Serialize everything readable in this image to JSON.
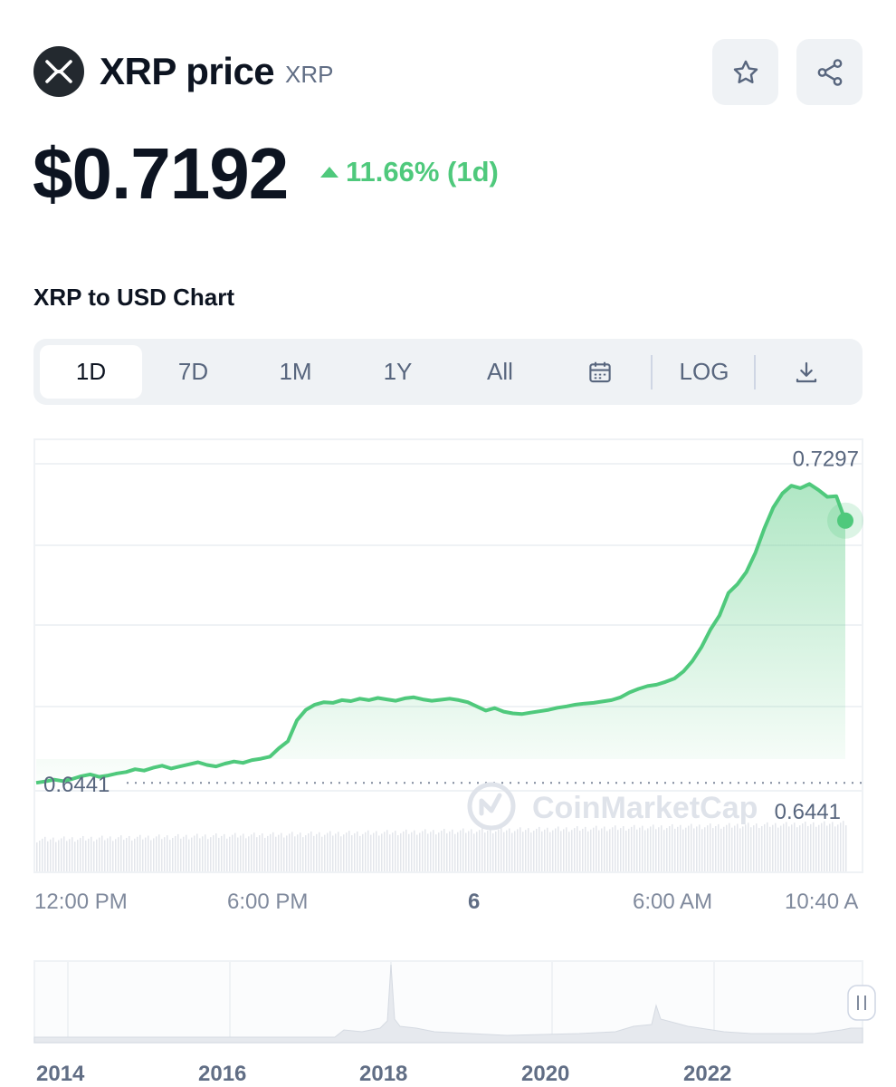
{
  "header": {
    "name": "XRP price",
    "symbol": "XRP",
    "price": "$0.7192",
    "change": "11.66% (1d)"
  },
  "chart_section": {
    "title": "XRP to USD Chart",
    "tabs": [
      "1D",
      "7D",
      "1M",
      "1Y",
      "All"
    ],
    "active_tab": "1D",
    "log_label": "LOG"
  },
  "colors": {
    "up": "#4fc97c",
    "logo_bg": "#23292f",
    "watermark": "#dfe3ea"
  },
  "chart_data": {
    "type": "line",
    "series": [
      {
        "values": [
          0.6441,
          0.6445,
          0.645,
          0.6446,
          0.6452,
          0.646,
          0.6465,
          0.6458,
          0.6462,
          0.6468,
          0.6472,
          0.648,
          0.6476,
          0.6484,
          0.649,
          0.6482,
          0.6488,
          0.6494,
          0.65,
          0.6492,
          0.6488,
          0.6496,
          0.6502,
          0.6498,
          0.6506,
          0.651,
          0.6516,
          0.654,
          0.656,
          0.662,
          0.665,
          0.6665,
          0.6672,
          0.667,
          0.6678,
          0.6675,
          0.6682,
          0.6678,
          0.6684,
          0.668,
          0.6676,
          0.6683,
          0.6686,
          0.668,
          0.6676,
          0.6679,
          0.6682,
          0.6678,
          0.6672,
          0.666,
          0.6648,
          0.6655,
          0.6645,
          0.664,
          0.6638,
          0.6642,
          0.6646,
          0.665,
          0.6656,
          0.666,
          0.6665,
          0.6668,
          0.667,
          0.6674,
          0.6678,
          0.6686,
          0.67,
          0.671,
          0.6718,
          0.6722,
          0.673,
          0.674,
          0.676,
          0.679,
          0.683,
          0.688,
          0.692,
          0.6985,
          0.701,
          0.7045,
          0.71,
          0.717,
          0.723,
          0.727,
          0.7292,
          0.7285,
          0.7297,
          0.728,
          0.726,
          0.7262,
          0.7192
        ],
        "start_label": "0.6441",
        "high_label": "0.7297"
      }
    ],
    "ylim": [
      0.64,
      0.736
    ],
    "low": 0.6441,
    "high": 0.7297,
    "last": 0.7192,
    "volume_label": "0.6441",
    "x_ticks": [
      "12:00 PM",
      "6:00 PM",
      "6",
      "6:00 AM",
      "10:40 A"
    ],
    "watermark": "CoinMarketCap",
    "overview_years": [
      "2014",
      "2016",
      "2018",
      "2020",
      "2022"
    ],
    "grid": true
  }
}
